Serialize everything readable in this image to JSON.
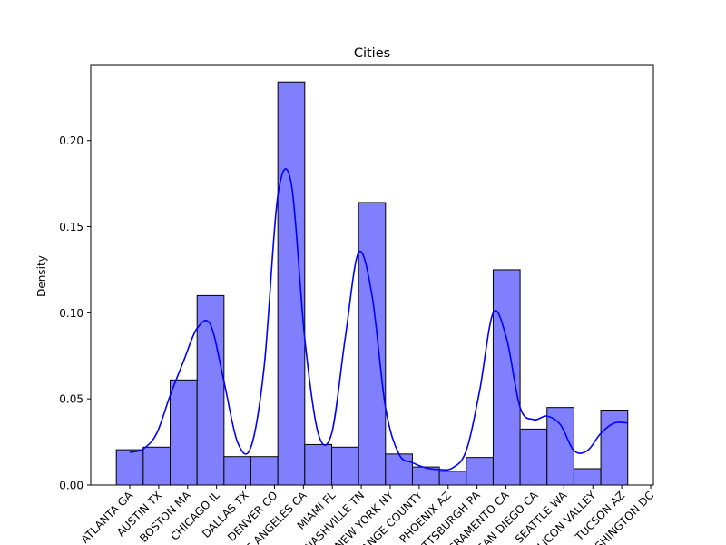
{
  "chart_data": {
    "type": "bar",
    "title": "Cities",
    "xlabel": "",
    "ylabel": "Density",
    "categories": [
      "ATLANTA GA",
      "AUSTIN TX",
      "BOSTON MA",
      "CHICAGO IL",
      "DALLAS TX",
      "DENVER CO",
      "LOS ANGELES CA",
      "MIAMI FL",
      "NASHVILLE TN",
      "NEW YORK NY",
      "ORANGE COUNTY",
      "PHOENIX AZ",
      "PITTSBURGH PA",
      "SACRAMENTO CA",
      "SAN DIEGO CA",
      "SEATTLE WA",
      "SILICON VALLEY",
      "TUCSON AZ",
      "WASHINGTON DC"
    ],
    "values": [
      0.0205,
      0.022,
      0.061,
      0.11,
      0.0165,
      0.0165,
      0.234,
      0.0235,
      0.022,
      0.164,
      0.018,
      0.0105,
      0.008,
      0.016,
      0.125,
      0.0325,
      0.045,
      0.0095,
      0.0435
    ],
    "kde": {
      "x": [
        0.5,
        1.0,
        1.5,
        2.0,
        2.5,
        3.0,
        3.5,
        4.0,
        4.5,
        5.0,
        5.5,
        6.0,
        6.5,
        7.0,
        7.5,
        8.0,
        8.5,
        9.0,
        9.5,
        10.0,
        10.5,
        11.0,
        11.5,
        12.0,
        12.5,
        13.0,
        13.5,
        14.0,
        14.5,
        15.0,
        15.5,
        16.0,
        16.5,
        17.0,
        17.5,
        18.0,
        18.5,
        19.0
      ],
      "y": [
        0.019,
        0.021,
        0.03,
        0.052,
        0.072,
        0.091,
        0.093,
        0.06,
        0.025,
        0.022,
        0.07,
        0.168,
        0.175,
        0.085,
        0.03,
        0.03,
        0.085,
        0.135,
        0.11,
        0.045,
        0.018,
        0.013,
        0.01,
        0.009,
        0.01,
        0.02,
        0.055,
        0.1,
        0.085,
        0.045,
        0.038,
        0.04,
        0.035,
        0.02,
        0.02,
        0.03,
        0.036,
        0.036
      ]
    },
    "ylim": [
      0,
      0.2436
    ],
    "yticks": [
      0.0,
      0.05,
      0.1,
      0.15,
      0.2
    ],
    "ytick_labels": [
      "0.00",
      "0.05",
      "0.10",
      "0.15",
      "0.20"
    ],
    "bar_color": "#8080ff",
    "bar_edge_color": "#000000",
    "kde_color": "#0000ff",
    "grid": false,
    "legend": "none"
  }
}
